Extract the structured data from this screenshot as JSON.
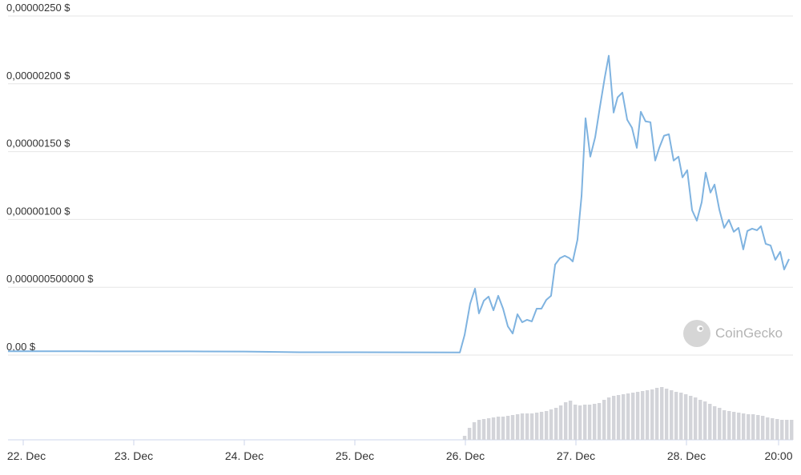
{
  "chart_data": [
    {
      "type": "line",
      "color": "#7fb3e0",
      "watermark": "CoinGecko",
      "grid": true,
      "xlim": [
        -0.138,
        6.98
      ],
      "ylim": [
        0,
        2.5e-06
      ],
      "yticks": [
        {
          "value": 0,
          "label": "0,00 $"
        },
        {
          "value": 5e-07,
          "label": "0,000000500000 $"
        },
        {
          "value": 1e-06,
          "label": "0,00000100 $"
        },
        {
          "value": 1.5e-06,
          "label": "0,00000150 $"
        },
        {
          "value": 2e-06,
          "label": "0,00000200 $"
        },
        {
          "value": 2.5e-06,
          "label": "0,00000250 $"
        }
      ],
      "x": [
        -0.138,
        0.5,
        1.0,
        1.5,
        2.0,
        2.3,
        2.5,
        3.0,
        3.5,
        3.95,
        3.993,
        4.043,
        4.087,
        4.123,
        4.167,
        4.21,
        4.254,
        4.297,
        4.341,
        4.384,
        4.428,
        4.471,
        4.514,
        4.558,
        4.601,
        4.645,
        4.688,
        4.732,
        4.775,
        4.812,
        4.855,
        4.899,
        4.942,
        4.971,
        5.014,
        5.051,
        5.087,
        5.13,
        5.174,
        5.217,
        5.261,
        5.297,
        5.341,
        5.377,
        5.42,
        5.464,
        5.507,
        5.551,
        5.587,
        5.63,
        5.674,
        5.717,
        5.754,
        5.797,
        5.841,
        5.884,
        5.928,
        5.964,
        6.007,
        6.051,
        6.094,
        6.138,
        6.174,
        6.217,
        6.254,
        6.297,
        6.341,
        6.384,
        6.428,
        6.471,
        6.514,
        6.551,
        6.594,
        6.638,
        6.674,
        6.717,
        6.761,
        6.804,
        6.848,
        6.884,
        6.928
      ],
      "values": [
        2.8e-08,
        2.8e-08,
        2.7e-08,
        2.7e-08,
        2.6e-08,
        2.3e-08,
        2.1e-08,
        2.1e-08,
        2e-08,
        1.9e-08,
        1.48e-07,
        3.78e-07,
        4.9e-07,
        3.07e-07,
        4.01e-07,
        4.31e-07,
        3.3e-07,
        4.37e-07,
        3.42e-07,
        2.12e-07,
        1.59e-07,
        3.01e-07,
        2.42e-07,
        2.6e-07,
        2.48e-07,
        3.42e-07,
        3.42e-07,
        4.07e-07,
        4.37e-07,
        6.67e-07,
        7.14e-07,
        7.32e-07,
        7.14e-07,
        6.9e-07,
        8.5e-07,
        1.174e-06,
        1.746e-06,
        1.463e-06,
        1.605e-06,
        1.829e-06,
        2.047e-06,
        2.207e-06,
        1.788e-06,
        1.9e-06,
        1.935e-06,
        1.735e-06,
        1.676e-06,
        1.528e-06,
        1.794e-06,
        1.723e-06,
        1.717e-06,
        1.434e-06,
        1.528e-06,
        1.617e-06,
        1.628e-06,
        1.434e-06,
        1.463e-06,
        1.31e-06,
        1.363e-06,
        1.068e-06,
        9.91e-07,
        1.127e-06,
        1.345e-06,
        1.198e-06,
        1.257e-06,
        1.074e-06,
        9.38e-07,
        9.97e-07,
        9.09e-07,
        9.38e-07,
        7.79e-07,
        9.15e-07,
        9.32e-07,
        9.2e-07,
        9.5e-07,
        8.2e-07,
        8.08e-07,
        7.02e-07,
        7.61e-07,
        6.31e-07,
        7.08e-07
      ]
    },
    {
      "type": "bar",
      "color": "#d3d4d9",
      "xlim": [
        -0.138,
        6.98
      ],
      "ylim": [
        0,
        70
      ],
      "xticks": [
        {
          "value": 0,
          "label": "22. Dec"
        },
        {
          "value": 1,
          "label": "23. Dec"
        },
        {
          "value": 2,
          "label": "24. Dec"
        },
        {
          "value": 3,
          "label": "25. Dec"
        },
        {
          "value": 4,
          "label": "26. Dec"
        },
        {
          "value": 5,
          "label": "27. Dec"
        },
        {
          "value": 6,
          "label": "28. Dec"
        },
        {
          "value": 6.8333,
          "label": "20:00"
        }
      ],
      "x": [
        3.993,
        4.037,
        4.08,
        4.124,
        4.167,
        4.211,
        4.254,
        4.298,
        4.341,
        4.385,
        4.428,
        4.472,
        4.515,
        4.559,
        4.602,
        4.646,
        4.689,
        4.733,
        4.776,
        4.82,
        4.863,
        4.907,
        4.95,
        4.994,
        5.037,
        5.081,
        5.124,
        5.168,
        5.211,
        5.255,
        5.298,
        5.342,
        5.385,
        5.429,
        5.472,
        5.516,
        5.559,
        5.603,
        5.646,
        5.69,
        5.733,
        5.777,
        5.82,
        5.864,
        5.907,
        5.951,
        5.994,
        6.038,
        6.081,
        6.125,
        6.168,
        6.212,
        6.255,
        6.299,
        6.342,
        6.386,
        6.429,
        6.473,
        6.516,
        6.56,
        6.603,
        6.647,
        6.69,
        6.734,
        6.777,
        6.821,
        6.864,
        6.908,
        6.951
      ],
      "values": [
        5,
        15,
        22,
        25,
        26,
        27,
        28,
        29,
        29,
        30,
        31,
        32,
        33,
        33,
        33,
        34,
        35,
        36,
        38,
        40,
        43,
        47,
        49,
        44,
        43,
        44,
        44,
        45,
        46,
        50,
        53,
        55,
        56,
        57,
        58,
        59,
        60,
        61,
        62,
        63,
        65,
        66,
        64,
        62,
        60,
        59,
        57,
        55,
        53,
        50,
        48,
        45,
        42,
        40,
        37,
        36,
        35,
        34,
        33,
        32,
        32,
        31,
        30,
        28,
        27,
        26,
        25,
        25,
        25
      ]
    }
  ]
}
